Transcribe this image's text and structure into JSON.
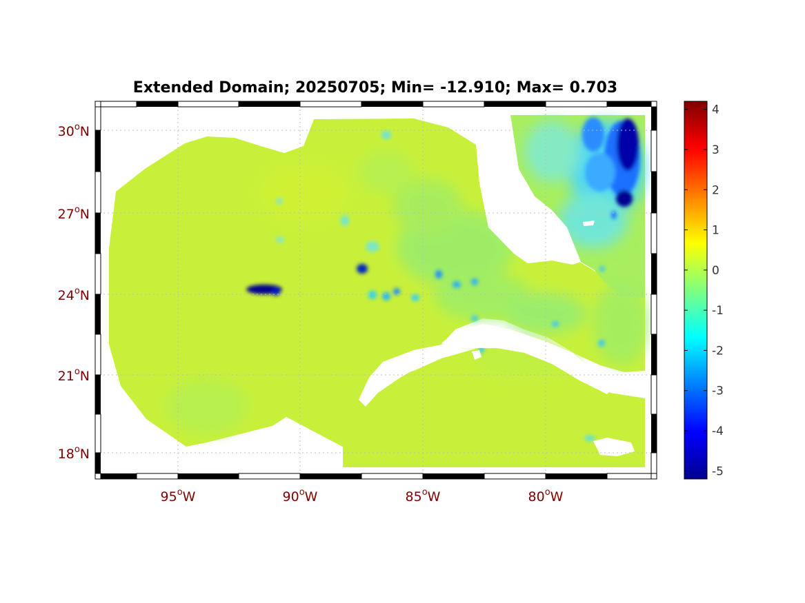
{
  "title": "Extended Domain; 20250705; Min= -12.910; Max= 0.703",
  "lat_ticks": [
    {
      "value": 30,
      "deg": "30",
      "hemi": "N"
    },
    {
      "value": 27,
      "deg": "27",
      "hemi": "N"
    },
    {
      "value": 24,
      "deg": "24",
      "hemi": "N"
    },
    {
      "value": 21,
      "deg": "21",
      "hemi": "N"
    },
    {
      "value": 18,
      "deg": "18",
      "hemi": "N"
    }
  ],
  "lon_ticks": [
    {
      "value": -95,
      "deg": "95",
      "hemi": "W"
    },
    {
      "value": -90,
      "deg": "90",
      "hemi": "W"
    },
    {
      "value": -85,
      "deg": "85",
      "hemi": "W"
    },
    {
      "value": -80,
      "deg": "80",
      "hemi": "W"
    }
  ],
  "map_extent": {
    "lon": [
      -98.4,
      -75.4
    ],
    "lat": [
      17.0,
      31.0
    ]
  },
  "colorbar": {
    "min": -5.2,
    "max": 4.2,
    "ticks": [
      "4",
      "3",
      "2",
      "1",
      "0",
      "-1",
      "-2",
      "-3",
      "-4",
      "-5"
    ],
    "tick_values": [
      4,
      3,
      2,
      1,
      0,
      -1,
      -2,
      -3,
      -4,
      -5
    ],
    "colormap": "jet"
  },
  "colors": {
    "field_base": "#c8f03a",
    "field_green": "#a7ee5f",
    "field_cyan": "#4fe8d8",
    "field_blue": "#1e63ff",
    "field_navy": "#00008f",
    "land": "#ffffff",
    "tick_label": "#800000"
  }
}
